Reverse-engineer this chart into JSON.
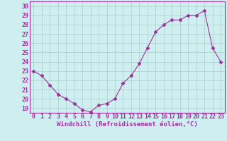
{
  "x": [
    0,
    1,
    2,
    3,
    4,
    5,
    6,
    7,
    8,
    9,
    10,
    11,
    12,
    13,
    14,
    15,
    16,
    17,
    18,
    19,
    20,
    21,
    22,
    23
  ],
  "y": [
    23.0,
    22.5,
    21.5,
    20.5,
    20.0,
    19.5,
    18.8,
    18.6,
    19.3,
    19.5,
    20.0,
    21.7,
    22.5,
    23.8,
    25.5,
    27.2,
    28.0,
    28.5,
    28.5,
    29.0,
    29.0,
    29.5,
    25.5,
    24.0
  ],
  "line_color": "#993399",
  "marker": "D",
  "marker_size": 2.5,
  "bg_color": "#ceeef0",
  "grid_color": "#aacccc",
  "xlabel": "Windchill (Refroidissement éolien,°C)",
  "xlabel_fontsize": 6.5,
  "tick_fontsize": 6.0,
  "xlim": [
    -0.5,
    23.5
  ],
  "ylim": [
    18.5,
    30.5
  ],
  "yticks": [
    19,
    20,
    21,
    22,
    23,
    24,
    25,
    26,
    27,
    28,
    29,
    30
  ],
  "xticks": [
    0,
    1,
    2,
    3,
    4,
    5,
    6,
    7,
    8,
    9,
    10,
    11,
    12,
    13,
    14,
    15,
    16,
    17,
    18,
    19,
    20,
    21,
    22,
    23
  ]
}
